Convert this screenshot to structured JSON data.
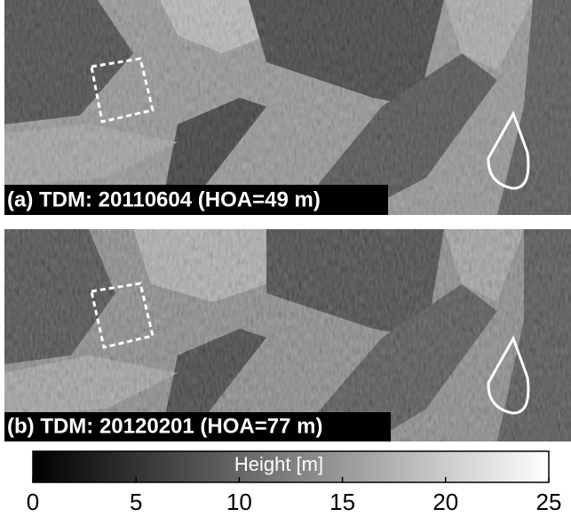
{
  "panels": [
    {
      "label": "(a) TDM: 20110604 (HOA=49 m)"
    },
    {
      "label": "(b) TDM: 20120201 (HOA=77 m)"
    }
  ],
  "colorbar": {
    "label": "Height [m]",
    "lim": [
      0,
      25
    ],
    "ticks": [
      0,
      5,
      10,
      15,
      20,
      25
    ]
  }
}
